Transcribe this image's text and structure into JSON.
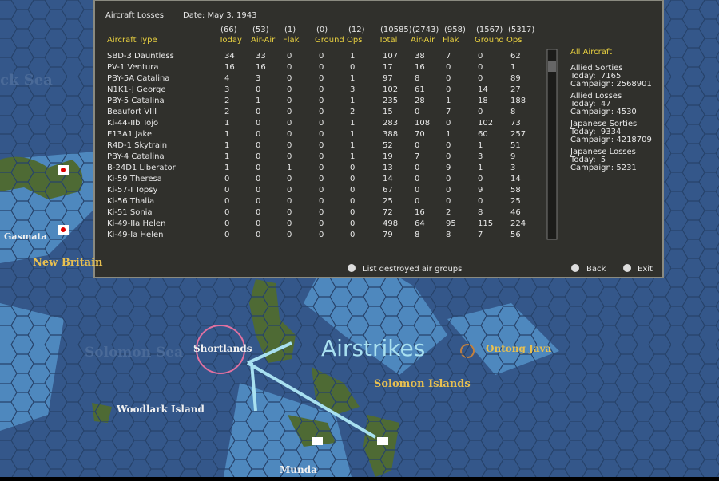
{
  "header": {
    "title": "Aircraft Losses",
    "date": "Date: May 3, 1943"
  },
  "table": {
    "totals": [
      "(66)",
      "(53)",
      "(1)",
      "(0)",
      "(12)",
      "(10585)",
      "(2743)",
      "(958)",
      "(1567)",
      "(5317)"
    ],
    "columns": [
      "Aircraft Type",
      "Today",
      "Air-Air",
      "Flak",
      "Ground",
      "Ops",
      "Total",
      "Air-Air",
      "Flak",
      "Ground",
      "Ops"
    ],
    "rows": [
      [
        "SBD-3 Dauntless",
        34,
        33,
        0,
        0,
        1,
        107,
        38,
        7,
        0,
        62
      ],
      [
        "PV-1 Ventura",
        16,
        16,
        0,
        0,
        0,
        17,
        16,
        0,
        0,
        1
      ],
      [
        "PBY-5A Catalina",
        4,
        3,
        0,
        0,
        1,
        97,
        8,
        0,
        0,
        89
      ],
      [
        "N1K1-J George",
        3,
        0,
        0,
        0,
        3,
        102,
        61,
        0,
        14,
        27
      ],
      [
        "PBY-5 Catalina",
        2,
        1,
        0,
        0,
        1,
        235,
        28,
        1,
        18,
        188
      ],
      [
        "Beaufort VIII",
        2,
        0,
        0,
        0,
        2,
        15,
        0,
        7,
        0,
        8
      ],
      [
        "Ki-44-IIb Tojo",
        1,
        0,
        0,
        0,
        1,
        283,
        108,
        0,
        102,
        73
      ],
      [
        "E13A1 Jake",
        1,
        0,
        0,
        0,
        1,
        388,
        70,
        1,
        60,
        257
      ],
      [
        "R4D-1 Skytrain",
        1,
        0,
        0,
        0,
        1,
        52,
        0,
        0,
        1,
        51
      ],
      [
        "PBY-4 Catalina",
        1,
        0,
        0,
        0,
        1,
        19,
        7,
        0,
        3,
        9
      ],
      [
        "B-24D1 Liberator",
        1,
        0,
        1,
        0,
        0,
        13,
        0,
        9,
        1,
        3
      ],
      [
        "Ki-59 Theresa",
        0,
        0,
        0,
        0,
        0,
        14,
        0,
        0,
        0,
        14
      ],
      [
        "Ki-57-I Topsy",
        0,
        0,
        0,
        0,
        0,
        67,
        0,
        0,
        9,
        58
      ],
      [
        "Ki-56 Thalia",
        0,
        0,
        0,
        0,
        0,
        25,
        0,
        0,
        0,
        25
      ],
      [
        "Ki-51 Sonia",
        0,
        0,
        0,
        0,
        0,
        72,
        16,
        2,
        8,
        46
      ],
      [
        "Ki-49-IIa Helen",
        0,
        0,
        0,
        0,
        0,
        498,
        64,
        95,
        115,
        224
      ],
      [
        "Ki-49-Ia Helen",
        0,
        0,
        0,
        0,
        0,
        79,
        8,
        8,
        7,
        56
      ]
    ]
  },
  "sidebar": {
    "heading": "All Aircraft",
    "sections": [
      {
        "title": "Allied Sorties",
        "today": "Today:  7165",
        "campaign": "Campaign: 2568901"
      },
      {
        "title": "Allied Losses",
        "today": "Today:  47",
        "campaign": "Campaign: 4530"
      },
      {
        "title": "Japanese Sorties",
        "today": "Today:  9334",
        "campaign": "Campaign: 4218709"
      },
      {
        "title": "Japanese Losses",
        "today": "Today:  5",
        "campaign": "Campaign: 5231"
      }
    ]
  },
  "buttons": {
    "list": "List destroyed air groups",
    "back": "Back",
    "exit": "Exit"
  },
  "map": {
    "labels": {
      "sea_top": "ck Sea",
      "gasmata": "Gasmata",
      "new_britain": "New Britain",
      "solomon_sea": "Solomon Sea",
      "shortlands": "Shortlands",
      "ontong_java": "Ontong Java",
      "solomon_islands": "Solomon Islands",
      "woodlark": "Woodlark Island",
      "munda": "Munda"
    },
    "annotation": "Airstrikes"
  }
}
